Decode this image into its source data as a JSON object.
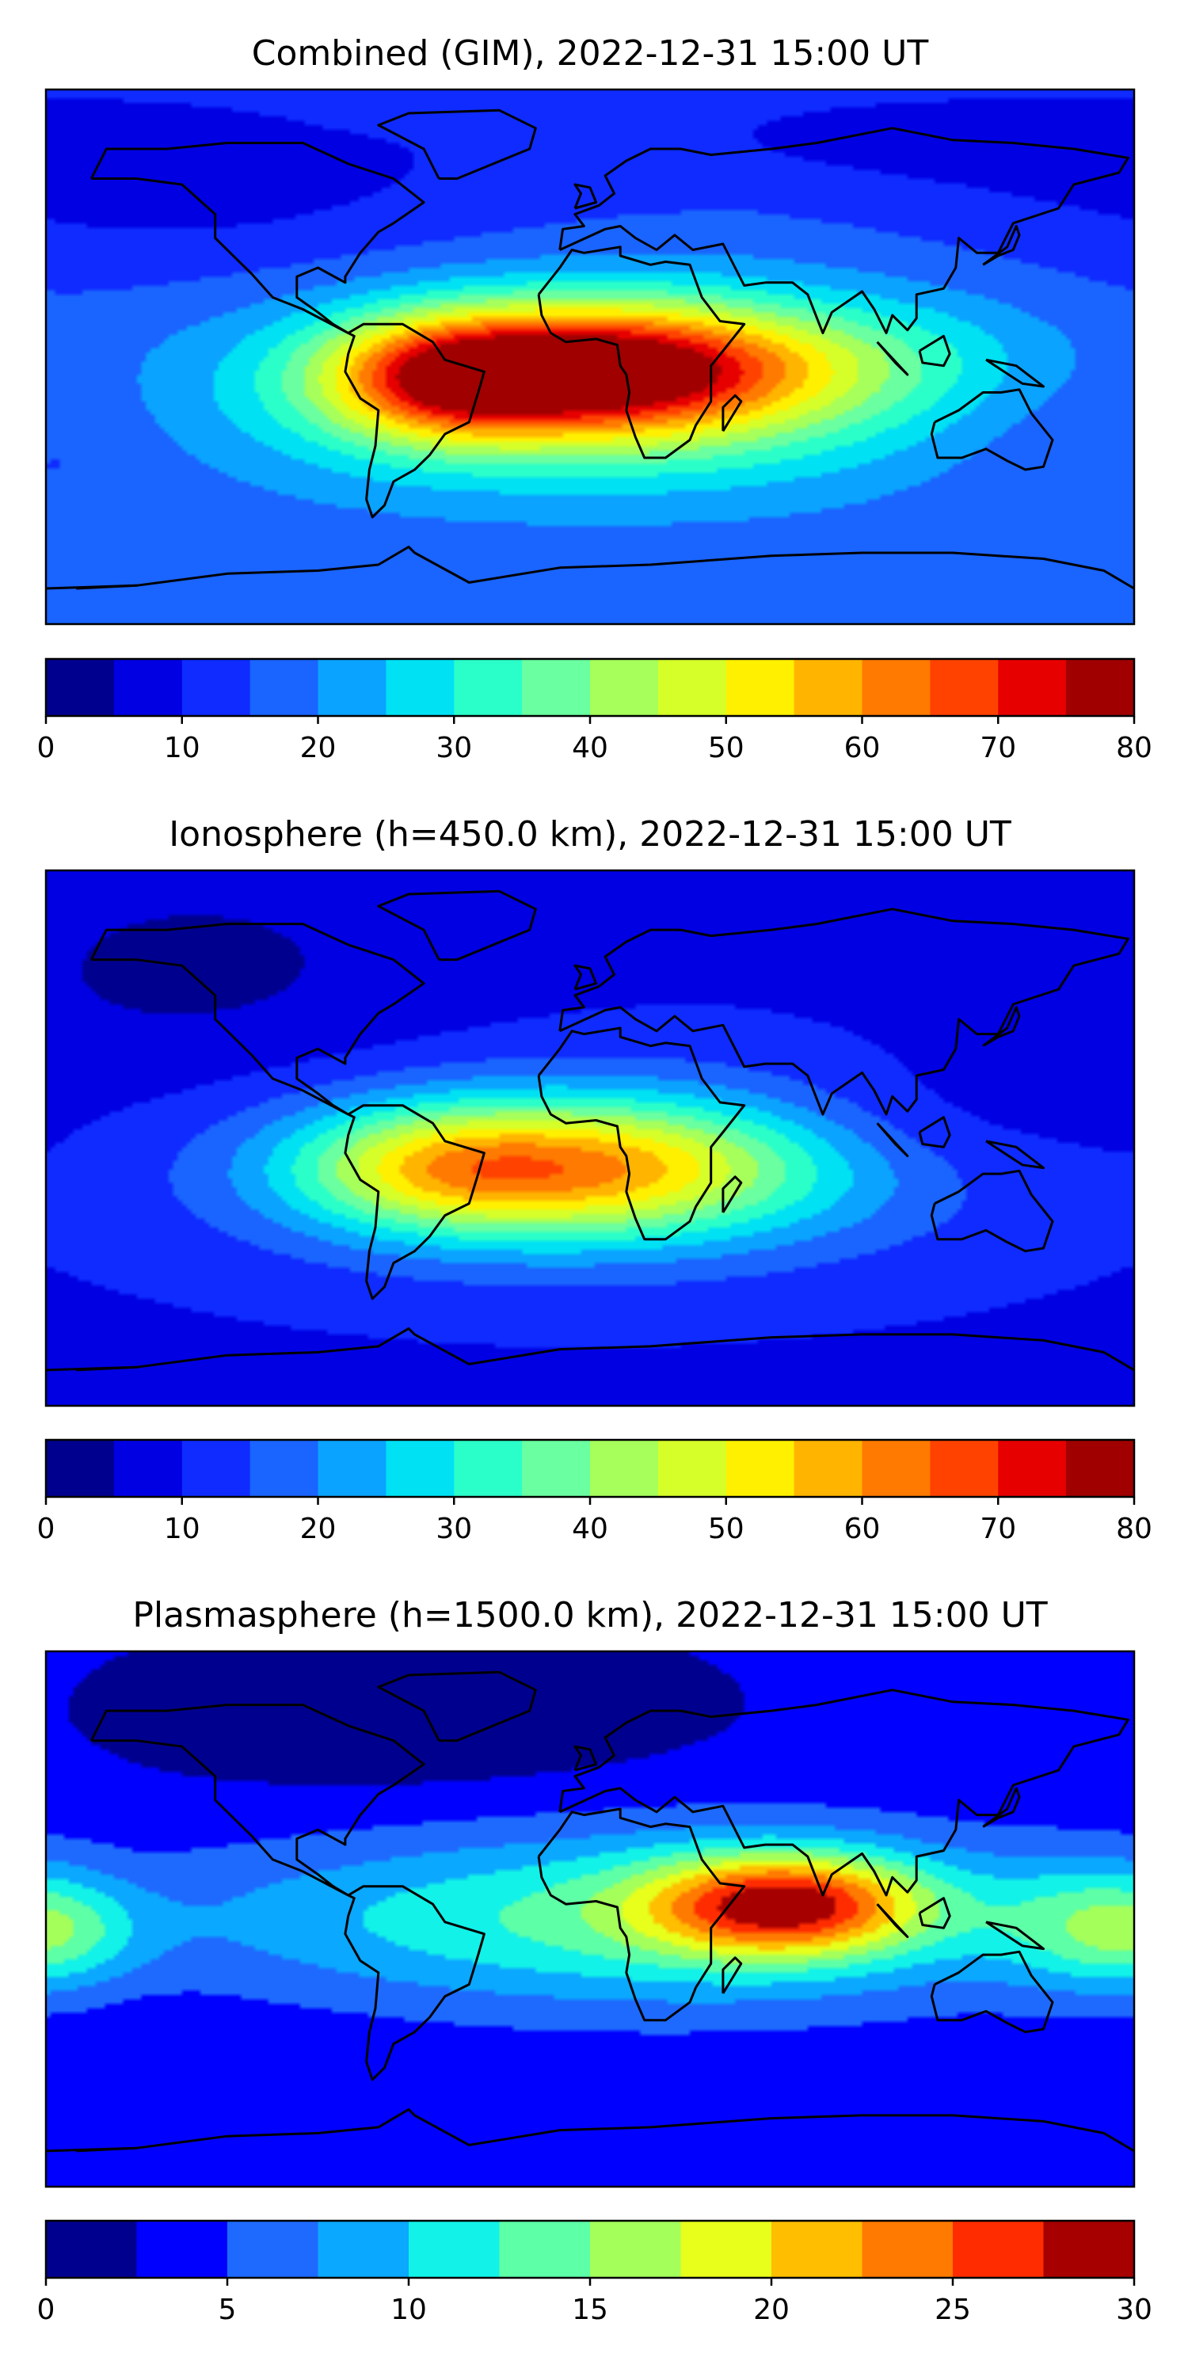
{
  "chart_data": [
    {
      "type": "heatmap",
      "title": "Combined (GIM), 2022-12-31 15:00 UT",
      "colorbar": {
        "ticks": [
          0,
          10,
          20,
          30,
          40,
          50,
          60,
          70,
          80
        ],
        "tick_labels": [
          "0",
          "10",
          "20",
          "30",
          "40",
          "50",
          "60",
          "70",
          "80"
        ],
        "levels": [
          0,
          5,
          10,
          15,
          20,
          25,
          30,
          35,
          40,
          45,
          50,
          55,
          60,
          65,
          70,
          75,
          80
        ],
        "colors": [
          "#00008f",
          "#0000e3",
          "#0f2bff",
          "#1a64ff",
          "#0aa3ff",
          "#00e1f4",
          "#2bffc9",
          "#6affa0",
          "#a6ff5a",
          "#d6ff2a",
          "#fff000",
          "#ffb400",
          "#ff7a00",
          "#ff4200",
          "#e60000",
          "#a00000"
        ]
      },
      "ylim": [
        -90,
        90
      ],
      "xlim": [
        -180,
        180
      ],
      "field": {
        "base": 16,
        "blobs": [
          {
            "lon": 2,
            "lat": -4,
            "amp": 54,
            "slon": 48,
            "slat": 15
          },
          {
            "lon": -50,
            "lat": -8,
            "amp": 26,
            "slon": 26,
            "slat": 14
          },
          {
            "lon": 5,
            "lat": -12,
            "amp": 22,
            "slon": 90,
            "slat": 24
          },
          {
            "lon": 95,
            "lat": 0,
            "amp": 6,
            "slon": 40,
            "slat": 14
          },
          {
            "lon": -130,
            "lat": 60,
            "amp": -8,
            "slon": 80,
            "slat": 25
          },
          {
            "lon": 90,
            "lat": 75,
            "amp": -6,
            "slon": 80,
            "slat": 15
          },
          {
            "lon": 160,
            "lat": -25,
            "amp": -4,
            "slon": 40,
            "slat": 20
          }
        ]
      }
    },
    {
      "type": "heatmap",
      "title": "Ionosphere  (h=450.0 km), 2022-12-31 15:00 UT",
      "colorbar": {
        "ticks": [
          0,
          10,
          20,
          30,
          40,
          50,
          60,
          70,
          80
        ],
        "tick_labels": [
          "0",
          "10",
          "20",
          "30",
          "40",
          "50",
          "60",
          "70",
          "80"
        ],
        "levels": [
          0,
          5,
          10,
          15,
          20,
          25,
          30,
          35,
          40,
          45,
          50,
          55,
          60,
          65,
          70,
          75,
          80
        ],
        "colors": [
          "#00008f",
          "#0000e3",
          "#0f2bff",
          "#1a64ff",
          "#0aa3ff",
          "#00e1f4",
          "#2bffc9",
          "#6affa0",
          "#a6ff5a",
          "#d6ff2a",
          "#fff000",
          "#ffb400",
          "#ff7a00",
          "#ff4200",
          "#e60000",
          "#a00000"
        ]
      },
      "ylim": [
        -90,
        90
      ],
      "xlim": [
        -180,
        180
      ],
      "field": {
        "base": 9,
        "blobs": [
          {
            "lon": -5,
            "lat": -10,
            "amp": 40,
            "slon": 55,
            "slat": 16
          },
          {
            "lon": -55,
            "lat": -10,
            "amp": 14,
            "slon": 30,
            "slat": 14
          },
          {
            "lon": 0,
            "lat": -12,
            "amp": 12,
            "slon": 95,
            "slat": 26
          },
          {
            "lon": -130,
            "lat": 55,
            "amp": -5,
            "slon": 60,
            "slat": 30
          },
          {
            "lon": 110,
            "lat": 5,
            "amp": -4,
            "slon": 40,
            "slat": 15
          }
        ]
      }
    },
    {
      "type": "heatmap",
      "title": "Plasmasphere (h=1500.0 km), 2022-12-31 15:00 UT",
      "colorbar": {
        "ticks": [
          0,
          5,
          10,
          15,
          20,
          25,
          30
        ],
        "tick_labels": [
          "0",
          "5",
          "10",
          "15",
          "20",
          "25",
          "30"
        ],
        "levels": [
          0,
          2.5,
          5,
          7.5,
          10,
          12.5,
          15,
          17.5,
          20,
          22.5,
          25,
          27.5,
          30
        ],
        "colors": [
          "#00008f",
          "#0000ff",
          "#1e6aff",
          "#0aa8ff",
          "#12f2e8",
          "#5dffa7",
          "#a4ff5b",
          "#e7ff1b",
          "#ffbe00",
          "#ff7a00",
          "#ff2c00",
          "#a60000"
        ]
      },
      "ylim": [
        -90,
        90
      ],
      "xlim": [
        -180,
        180
      ],
      "field": {
        "base": 3,
        "blobs": [
          {
            "lon": 65,
            "lat": 5,
            "amp": 19,
            "slon": 32,
            "slat": 12
          },
          {
            "lon": 30,
            "lat": 0,
            "amp": 8,
            "slon": 90,
            "slat": 22
          },
          {
            "lon": -60,
            "lat": 0,
            "amp": 3,
            "slon": 110,
            "slat": 18
          },
          {
            "lon": 165,
            "lat": -2,
            "amp": 6,
            "slon": 25,
            "slat": 15
          },
          {
            "lon": -175,
            "lat": -5,
            "amp": 5,
            "slon": 20,
            "slat": 12
          },
          {
            "lon": -60,
            "lat": 70,
            "amp": -3,
            "slon": 60,
            "slat": 18
          }
        ]
      }
    }
  ]
}
